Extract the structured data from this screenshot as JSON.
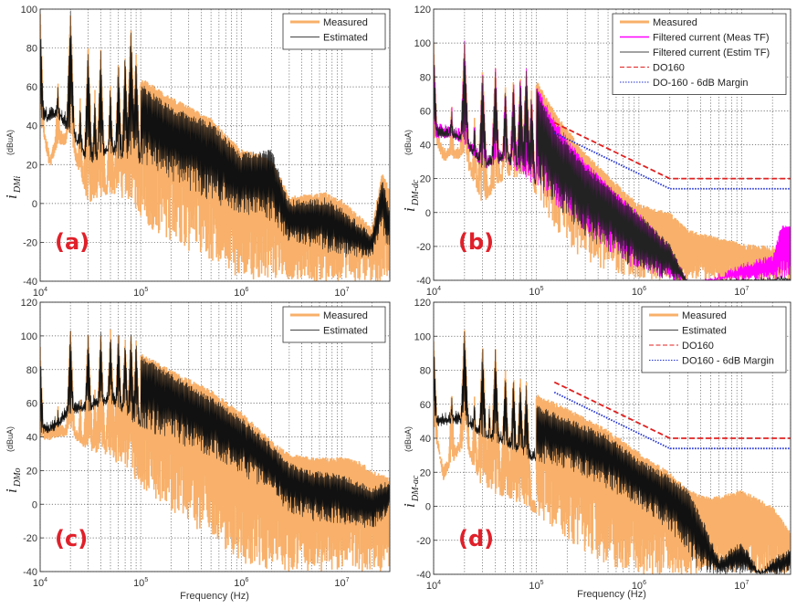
{
  "figure": {
    "xlabel": "Frequency (Hz)",
    "yunit": "(dBuA)"
  },
  "chart_data": [
    {
      "id": "a",
      "type": "line",
      "panel_tag": "(a)",
      "ylabel_main": "i",
      "ylabel_sub": "DMi",
      "ylabel_unit": "(dBuA)",
      "xscale": "log",
      "xlim": [
        10000,
        30000000
      ],
      "ylim": [
        -40,
        100
      ],
      "yticks": [
        -40,
        -20,
        0,
        20,
        40,
        60,
        80,
        100
      ],
      "xticks": [
        {
          "base": "10",
          "exp": "4",
          "value": 10000
        },
        {
          "base": "10",
          "exp": "5",
          "value": 100000
        },
        {
          "base": "10",
          "exp": "6",
          "value": 1000000
        },
        {
          "base": "10",
          "exp": "7",
          "value": 10000000
        }
      ],
      "grid": true,
      "legend_position": "top-right",
      "show_xlabel": false,
      "series": [
        {
          "name": "Measured",
          "color": "#f8b06a",
          "style": "solid-thick",
          "envelope_hz": [
            10000,
            12500,
            15000,
            20000,
            30000,
            50000,
            80000,
            100000,
            200000,
            500000,
            1000000,
            2000000,
            3000000,
            7000000,
            10000000,
            20000000,
            25000000,
            30000000
          ],
          "upper_dbua": [
            100,
            45,
            62,
            100,
            82,
            70,
            92,
            65,
            55,
            44,
            28,
            24,
            4,
            6,
            2,
            -12,
            16,
            8
          ],
          "lower_dbua": [
            42,
            18,
            30,
            30,
            0,
            5,
            0,
            -10,
            -20,
            -30,
            -40,
            -40,
            -40,
            -40,
            -40,
            -40,
            -40,
            -40
          ]
        },
        {
          "name": "Estimated",
          "color": "#111111",
          "style": "solid-thin",
          "envelope_hz": [
            10000,
            12500,
            15000,
            20000,
            30000,
            50000,
            80000,
            100000,
            200000,
            500000,
            1000000,
            2000000,
            3000000,
            7000000,
            10000000,
            20000000,
            25000000,
            30000000
          ],
          "upper_dbua": [
            98,
            42,
            64,
            99,
            83,
            68,
            85,
            62,
            50,
            42,
            26,
            28,
            2,
            3,
            -2,
            -15,
            15,
            -3
          ],
          "lower_dbua": [
            42,
            42,
            44,
            35,
            20,
            25,
            20,
            20,
            12,
            0,
            -5,
            -10,
            -20,
            -25,
            -28,
            -28,
            -15,
            -25
          ]
        }
      ],
      "peaks_hz": [
        10000,
        15000,
        20000,
        25000,
        30000,
        35000,
        40000,
        50000,
        60000,
        70000,
        80000,
        90000
      ],
      "peaks_dbua": [
        100,
        65,
        100,
        55,
        83,
        60,
        80,
        64,
        75,
        78,
        92,
        80
      ]
    },
    {
      "id": "b",
      "type": "line",
      "panel_tag": "(b)",
      "ylabel_main": "i",
      "ylabel_sub": "DM-dc",
      "ylabel_unit": "(dBuA)",
      "xscale": "log",
      "xlim": [
        10000,
        30000000
      ],
      "ylim": [
        -40,
        120
      ],
      "yticks": [
        -40,
        -20,
        0,
        20,
        40,
        60,
        80,
        100,
        120
      ],
      "xticks": [
        {
          "base": "10",
          "exp": "4",
          "value": 10000
        },
        {
          "base": "10",
          "exp": "5",
          "value": 100000
        },
        {
          "base": "10",
          "exp": "6",
          "value": 1000000
        },
        {
          "base": "10",
          "exp": "7",
          "value": 10000000
        }
      ],
      "grid": true,
      "legend_position": "top-right",
      "show_xlabel": false,
      "series": [
        {
          "name": "Measured",
          "color": "#f8b06a",
          "style": "solid-thick",
          "envelope_hz": [
            10000,
            12500,
            15000,
            20000,
            30000,
            50000,
            80000,
            150000,
            300000,
            1000000,
            2000000,
            3000000,
            10000000,
            20000000,
            30000000
          ],
          "upper_dbua": [
            100,
            45,
            65,
            103,
            87,
            84,
            89,
            60,
            35,
            5,
            0,
            -10,
            -18,
            -20,
            -15
          ],
          "lower_dbua": [
            44,
            30,
            32,
            30,
            5,
            20,
            20,
            -10,
            -30,
            -40,
            -40,
            -40,
            -40,
            -40,
            -40
          ]
        },
        {
          "name": "Filtered current (Meas TF)",
          "color": "#ff00ff",
          "style": "solid",
          "envelope_hz": [
            10000,
            12500,
            15000,
            20000,
            30000,
            50000,
            80000,
            150000,
            300000,
            1000000,
            2000000,
            3000000,
            4000000,
            10000000,
            20000000,
            25000000,
            30000000
          ],
          "upper_dbua": [
            100,
            44,
            65,
            102,
            86,
            83,
            87,
            55,
            30,
            0,
            -20,
            -40,
            -40,
            -30,
            -25,
            -5,
            -8
          ],
          "lower_dbua": [
            44,
            44,
            44,
            40,
            25,
            30,
            20,
            5,
            -15,
            -35,
            -40,
            -40,
            -40,
            -40,
            -40,
            -40,
            -40
          ]
        },
        {
          "name": "Filtered current (Estim TF)",
          "color": "#222222",
          "style": "solid-thin",
          "envelope_hz": [
            10000,
            12500,
            15000,
            20000,
            30000,
            50000,
            80000,
            150000,
            300000,
            1000000,
            2000000,
            3000000,
            4000000,
            30000000
          ],
          "upper_dbua": [
            99,
            44,
            65,
            101,
            86,
            83,
            87,
            50,
            28,
            0,
            -18,
            -40,
            -40,
            -37
          ],
          "lower_dbua": [
            44,
            44,
            44,
            40,
            25,
            30,
            20,
            5,
            -15,
            -35,
            -40,
            -40,
            -40,
            -40
          ]
        },
        {
          "name": "DO160",
          "color": "#e02020",
          "style": "dashed",
          "x": [
            150000,
            2000000,
            30000000
          ],
          "y": [
            53,
            20,
            20
          ]
        },
        {
          "name": "DO-160 - 6dB Margin",
          "color": "#2030d0",
          "style": "dotted",
          "x": [
            150000,
            2000000,
            30000000
          ],
          "y": [
            47,
            14,
            14
          ]
        }
      ],
      "peaks_hz": [
        10000,
        15000,
        20000,
        25000,
        30000,
        40000,
        50000,
        60000,
        70000,
        80000,
        90000
      ],
      "peaks_dbua": [
        100,
        66,
        102,
        58,
        87,
        87,
        76,
        80,
        82,
        88,
        73
      ]
    },
    {
      "id": "c",
      "type": "line",
      "panel_tag": "(c)",
      "ylabel_main": "i",
      "ylabel_sub": "DMo",
      "ylabel_unit": "(dBuA)",
      "xscale": "log",
      "xlim": [
        10000,
        30000000
      ],
      "ylim": [
        -40,
        120
      ],
      "yticks": [
        -40,
        -20,
        0,
        20,
        40,
        60,
        80,
        100,
        120
      ],
      "xticks": [
        {
          "base": "10",
          "exp": "4",
          "value": 10000
        },
        {
          "base": "10",
          "exp": "5",
          "value": 100000
        },
        {
          "base": "10",
          "exp": "6",
          "value": 1000000
        },
        {
          "base": "10",
          "exp": "7",
          "value": 10000000
        }
      ],
      "grid": true,
      "legend_position": "top-right",
      "show_xlabel": true,
      "series": [
        {
          "name": "Measured",
          "color": "#f8b06a",
          "style": "solid-thick",
          "envelope_hz": [
            10000,
            12500,
            15000,
            20000,
            30000,
            50000,
            100000,
            200000,
            500000,
            1000000,
            2000000,
            3000000,
            5000000,
            10000000,
            15000000,
            20000000,
            30000000
          ],
          "upper_dbua": [
            95,
            40,
            62,
            106,
            104,
            104,
            90,
            80,
            68,
            55,
            38,
            30,
            28,
            28,
            26,
            20,
            16
          ],
          "lower_dbua": [
            38,
            38,
            40,
            40,
            32,
            28,
            10,
            -5,
            -20,
            -35,
            -40,
            -40,
            -40,
            -40,
            -40,
            -40,
            -40
          ]
        },
        {
          "name": "Estimated",
          "color": "#111111",
          "style": "solid-thin",
          "envelope_hz": [
            10000,
            12500,
            15000,
            20000,
            30000,
            50000,
            100000,
            200000,
            500000,
            1000000,
            2000000,
            3000000,
            5000000,
            10000000,
            20000000,
            30000000
          ],
          "upper_dbua": [
            94,
            42,
            62,
            106,
            104,
            104,
            88,
            78,
            64,
            52,
            36,
            25,
            20,
            18,
            10,
            15
          ],
          "lower_dbua": [
            42,
            42,
            45,
            53,
            55,
            60,
            45,
            38,
            28,
            18,
            5,
            -5,
            -10,
            -12,
            -15,
            -5
          ]
        }
      ],
      "peaks_hz": [
        10000,
        15000,
        20000,
        25000,
        30000,
        35000,
        40000,
        50000,
        60000,
        70000,
        80000,
        90000
      ],
      "peaks_dbua": [
        95,
        62,
        106,
        65,
        104,
        70,
        104,
        105,
        104,
        100,
        104,
        100
      ]
    },
    {
      "id": "d",
      "type": "line",
      "panel_tag": "(d)",
      "ylabel_main": "i",
      "ylabel_sub": "DM-ac",
      "ylabel_unit": "(dBuA)",
      "xscale": "log",
      "xlim": [
        10000,
        30000000
      ],
      "ylim": [
        -40,
        120
      ],
      "yticks": [
        -40,
        -20,
        0,
        20,
        40,
        60,
        80,
        100,
        120
      ],
      "xticks": [
        {
          "base": "10",
          "exp": "4",
          "value": 10000
        },
        {
          "base": "10",
          "exp": "5",
          "value": 100000
        },
        {
          "base": "10",
          "exp": "6",
          "value": 1000000
        },
        {
          "base": "10",
          "exp": "7",
          "value": 10000000
        }
      ],
      "grid": true,
      "legend_position": "top-right",
      "show_xlabel": true,
      "series": [
        {
          "name": "Measured",
          "color": "#f8b06a",
          "style": "solid-thick",
          "envelope_hz": [
            10000,
            12500,
            15000,
            20000,
            30000,
            50000,
            100000,
            200000,
            500000,
            1000000,
            2000000,
            3000000,
            5000000,
            10000000,
            20000000,
            30000000
          ],
          "upper_dbua": [
            100,
            48,
            68,
            107,
            96,
            82,
            66,
            58,
            45,
            32,
            20,
            10,
            5,
            10,
            0,
            -15
          ],
          "lower_dbua": [
            45,
            15,
            25,
            35,
            10,
            5,
            -5,
            -20,
            -35,
            -40,
            -40,
            -40,
            -40,
            -40,
            -40,
            -40
          ]
        },
        {
          "name": "Estimated",
          "color": "#111111",
          "style": "solid-thin",
          "envelope_hz": [
            10000,
            12500,
            15000,
            20000,
            30000,
            50000,
            100000,
            200000,
            500000,
            1000000,
            2000000,
            3000000,
            4000000,
            6000000,
            10000000,
            15000000,
            20000000,
            30000000
          ],
          "upper_dbua": [
            100,
            47,
            70,
            106,
            95,
            80,
            60,
            52,
            42,
            28,
            18,
            10,
            -5,
            -30,
            -20,
            -38,
            -30,
            -25
          ],
          "lower_dbua": [
            47,
            47,
            48,
            48,
            40,
            35,
            25,
            22,
            10,
            0,
            -15,
            -30,
            -40,
            -40,
            -40,
            -40,
            -40,
            -40
          ]
        },
        {
          "name": "DO160",
          "color": "#e02020",
          "style": "dashed",
          "x": [
            150000,
            2000000,
            30000000
          ],
          "y": [
            73,
            40,
            40
          ]
        },
        {
          "name": "DO160 - 6dB Margin",
          "color": "#2030d0",
          "style": "dotted",
          "x": [
            150000,
            2000000,
            30000000
          ],
          "y": [
            67,
            34,
            34
          ]
        }
      ],
      "peaks_hz": [
        10000,
        15000,
        20000,
        25000,
        30000,
        35000,
        40000,
        50000,
        60000,
        70000,
        80000
      ],
      "peaks_dbua": [
        100,
        70,
        107,
        65,
        96,
        62,
        94,
        82,
        78,
        78,
        76
      ]
    }
  ]
}
